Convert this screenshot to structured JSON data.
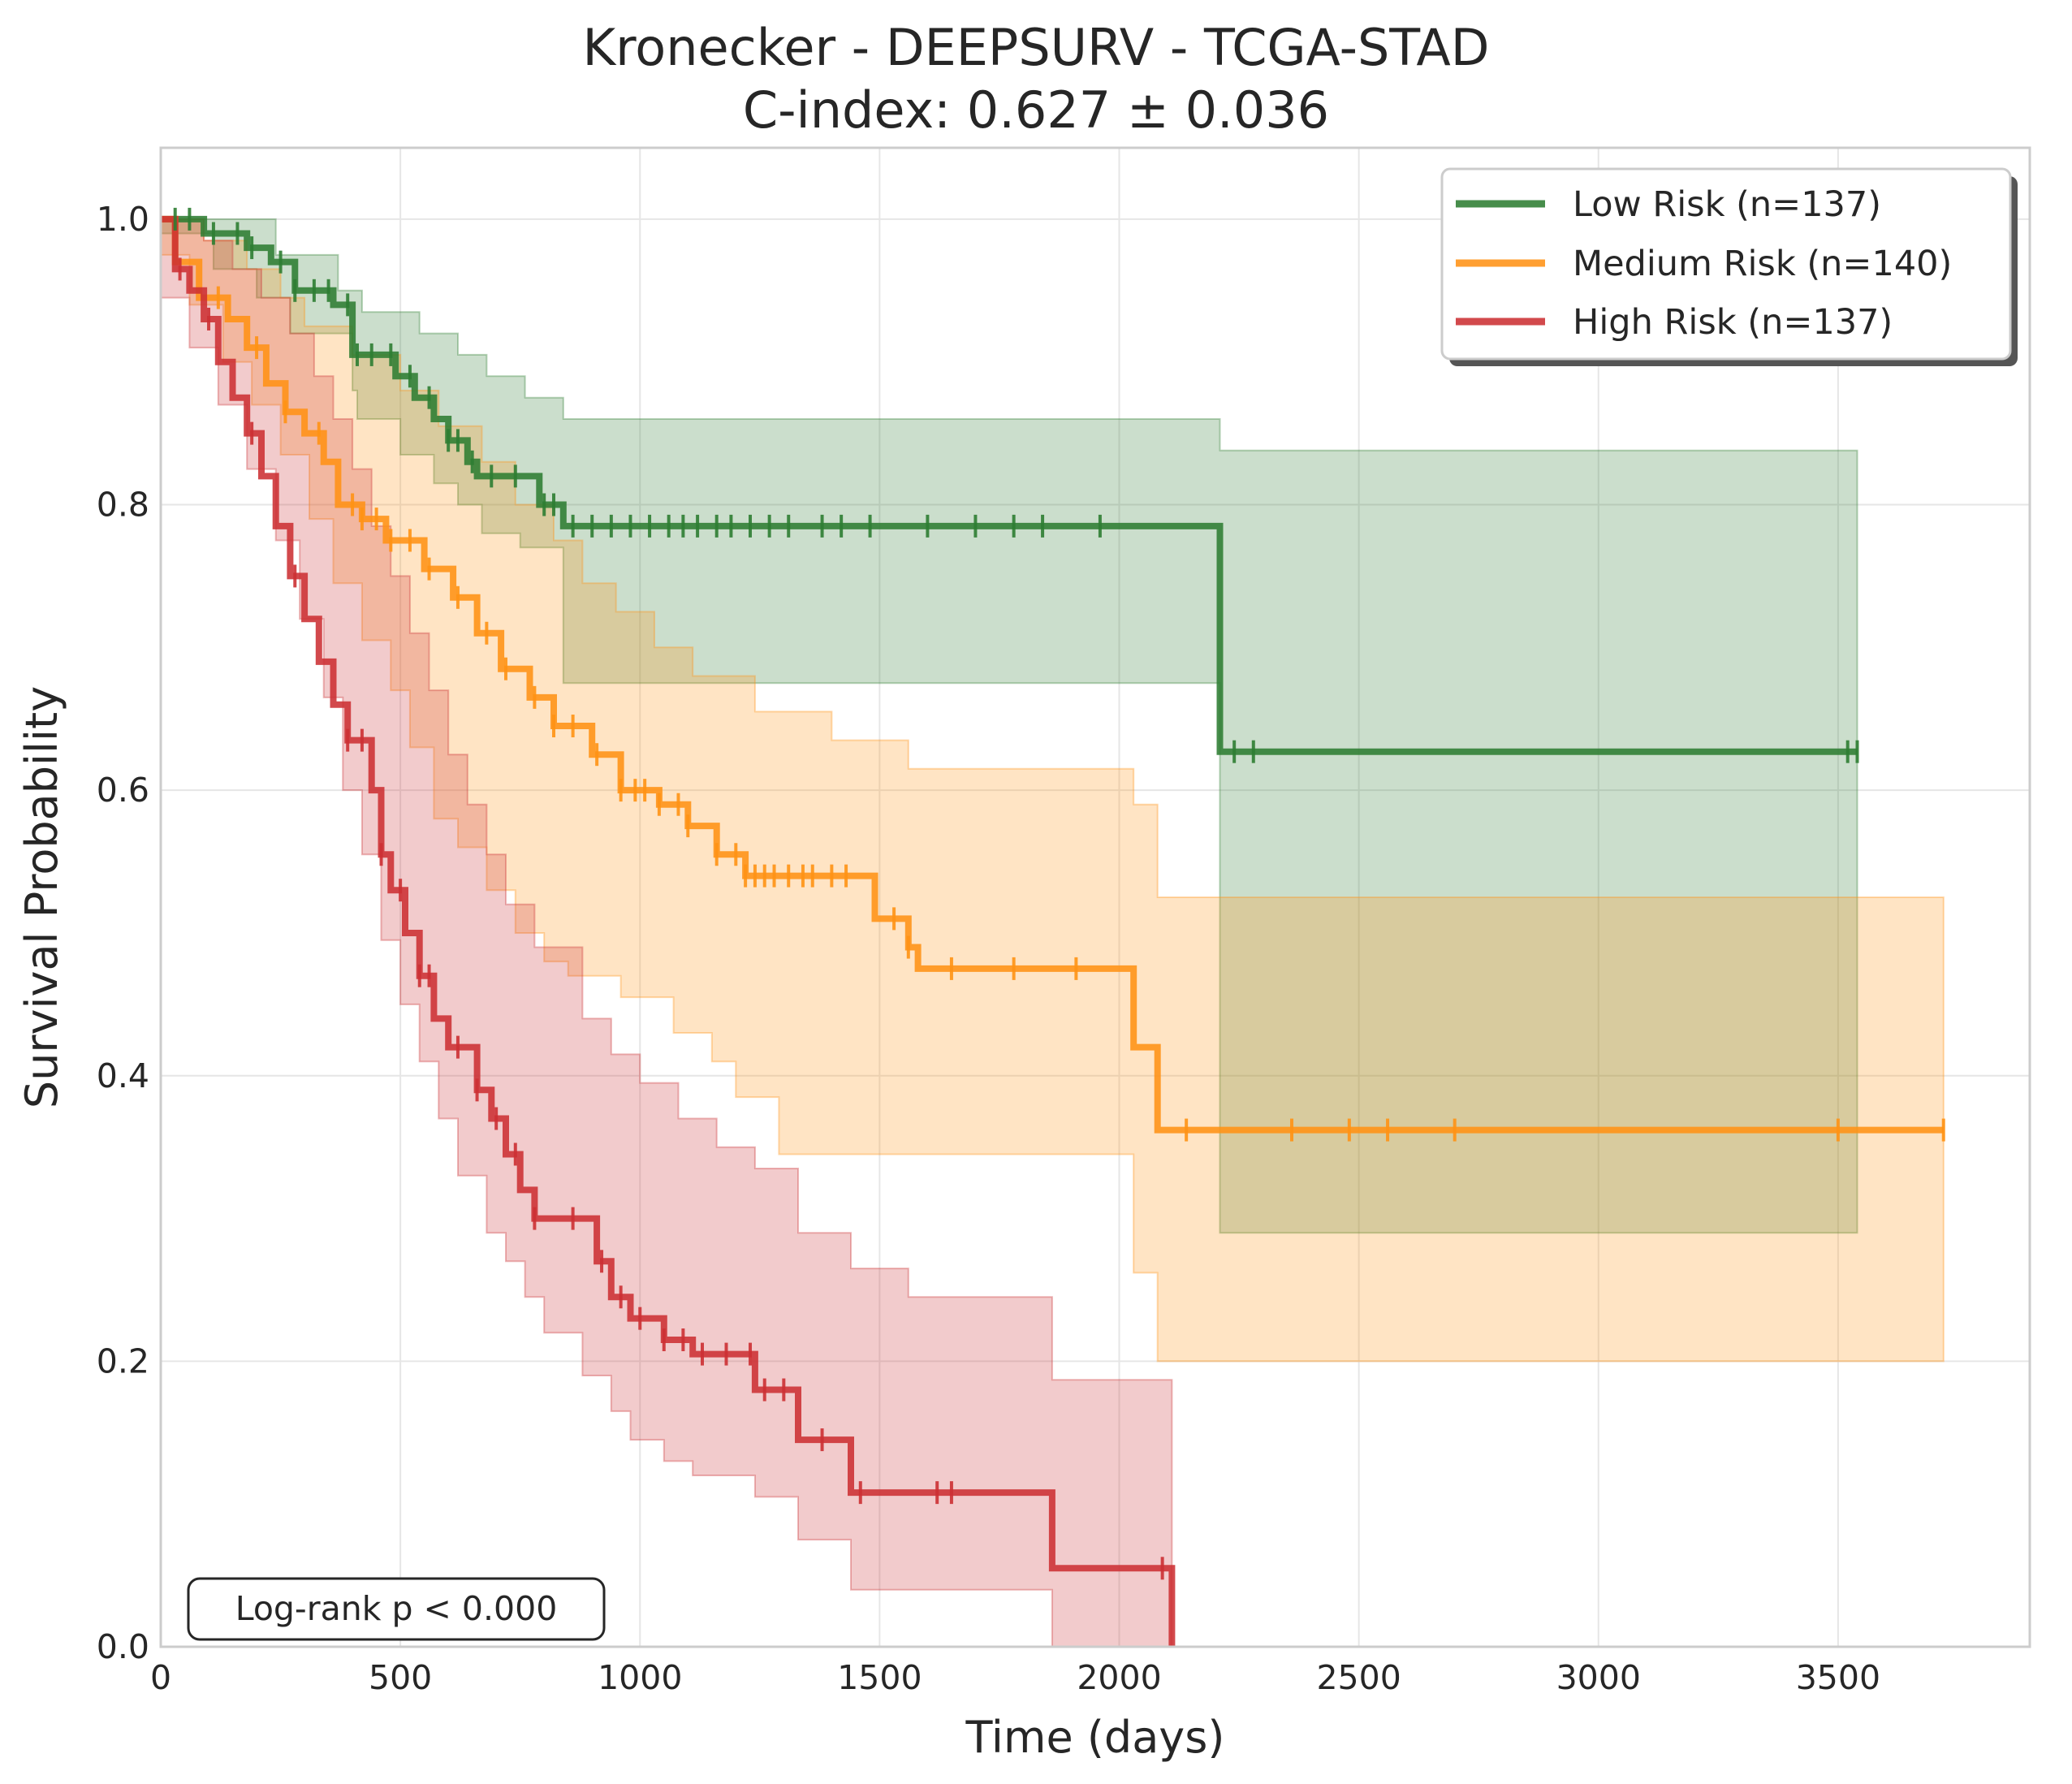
{
  "chart_data": {
    "type": "line",
    "subtype": "kaplan-meier",
    "title": "Kronecker - DEEPSURV - TCGA-STAD",
    "subtitle": "C-index: 0.627 ± 0.036",
    "xlabel": "Time (days)",
    "ylabel": "Survival Probability",
    "xlim": [
      0,
      3900
    ],
    "ylim": [
      0,
      1.05
    ],
    "x_ticks": [
      0,
      500,
      1000,
      1500,
      2000,
      2500,
      3000,
      3500
    ],
    "y_ticks": [
      0.0,
      0.2,
      0.4,
      0.6,
      0.8,
      1.0
    ],
    "x_tick_labels": [
      "0",
      "500",
      "1000",
      "1500",
      "2000",
      "2500",
      "3000",
      "3500"
    ],
    "y_tick_labels": [
      "0.0",
      "0.2",
      "0.4",
      "0.6",
      "0.8",
      "1.0"
    ],
    "grid": true,
    "legend_position": "top-right",
    "annotation": "Log-rank p < 0.000",
    "series": [
      {
        "name": "Low Risk (n=137)",
        "color": "#2e7d32",
        "steps": [
          [
            0,
            1.0
          ],
          [
            90,
            0.99
          ],
          [
            180,
            0.98
          ],
          [
            230,
            0.97
          ],
          [
            280,
            0.95
          ],
          [
            360,
            0.94
          ],
          [
            400,
            0.905
          ],
          [
            490,
            0.89
          ],
          [
            530,
            0.875
          ],
          [
            570,
            0.86
          ],
          [
            600,
            0.845
          ],
          [
            640,
            0.83
          ],
          [
            660,
            0.82
          ],
          [
            790,
            0.8
          ],
          [
            840,
            0.785
          ],
          [
            2210,
            0.785
          ],
          [
            2210,
            0.627
          ],
          [
            3540,
            0.627
          ]
        ],
        "ci_upper": [
          [
            0,
            1.0
          ],
          [
            150,
            1.0
          ],
          [
            240,
            0.975
          ],
          [
            370,
            0.95
          ],
          [
            420,
            0.935
          ],
          [
            540,
            0.92
          ],
          [
            620,
            0.905
          ],
          [
            680,
            0.89
          ],
          [
            760,
            0.875
          ],
          [
            840,
            0.86
          ],
          [
            2210,
            0.86
          ],
          [
            2210,
            0.838
          ],
          [
            3540,
            0.838
          ]
        ],
        "ci_lower": [
          [
            0,
            0.99
          ],
          [
            110,
            0.965
          ],
          [
            200,
            0.945
          ],
          [
            270,
            0.92
          ],
          [
            400,
            0.88
          ],
          [
            410,
            0.86
          ],
          [
            500,
            0.835
          ],
          [
            570,
            0.815
          ],
          [
            620,
            0.8
          ],
          [
            670,
            0.78
          ],
          [
            750,
            0.77
          ],
          [
            840,
            0.685
          ],
          [
            840,
            0.675
          ],
          [
            2210,
            0.675
          ],
          [
            2210,
            0.29
          ],
          [
            3540,
            0.29
          ]
        ],
        "censor_x": [
          30,
          60,
          110,
          160,
          190,
          250,
          280,
          320,
          350,
          390,
          410,
          440,
          480,
          520,
          560,
          600,
          620,
          650,
          690,
          740,
          800,
          820,
          860,
          900,
          940,
          980,
          1020,
          1060,
          1090,
          1120,
          1160,
          1190,
          1230,
          1270,
          1310,
          1380,
          1420,
          1480,
          1600,
          1700,
          1780,
          1840,
          1960,
          2240,
          2280,
          3520,
          3540
        ],
        "censor_at_y": true
      },
      {
        "name": "Medium Risk (n=140)",
        "color": "#ff9214",
        "steps": [
          [
            0,
            1.0
          ],
          [
            30,
            0.97
          ],
          [
            80,
            0.945
          ],
          [
            140,
            0.93
          ],
          [
            180,
            0.91
          ],
          [
            220,
            0.885
          ],
          [
            260,
            0.865
          ],
          [
            300,
            0.85
          ],
          [
            340,
            0.83
          ],
          [
            370,
            0.8
          ],
          [
            420,
            0.79
          ],
          [
            470,
            0.775
          ],
          [
            550,
            0.755
          ],
          [
            610,
            0.735
          ],
          [
            660,
            0.71
          ],
          [
            710,
            0.685
          ],
          [
            770,
            0.665
          ],
          [
            820,
            0.645
          ],
          [
            900,
            0.625
          ],
          [
            960,
            0.6
          ],
          [
            1040,
            0.59
          ],
          [
            1100,
            0.575
          ],
          [
            1160,
            0.555
          ],
          [
            1220,
            0.54
          ],
          [
            1460,
            0.54
          ],
          [
            1490,
            0.51
          ],
          [
            1560,
            0.49
          ],
          [
            1580,
            0.475
          ],
          [
            2030,
            0.475
          ],
          [
            2030,
            0.42
          ],
          [
            2080,
            0.42
          ],
          [
            2080,
            0.362
          ],
          [
            3720,
            0.362
          ]
        ],
        "ci_upper": [
          [
            0,
            1.0
          ],
          [
            90,
            0.985
          ],
          [
            180,
            0.965
          ],
          [
            250,
            0.945
          ],
          [
            300,
            0.925
          ],
          [
            400,
            0.905
          ],
          [
            500,
            0.88
          ],
          [
            580,
            0.855
          ],
          [
            670,
            0.83
          ],
          [
            740,
            0.8
          ],
          [
            820,
            0.775
          ],
          [
            880,
            0.745
          ],
          [
            950,
            0.725
          ],
          [
            1030,
            0.7
          ],
          [
            1110,
            0.68
          ],
          [
            1240,
            0.655
          ],
          [
            1400,
            0.635
          ],
          [
            1560,
            0.615
          ],
          [
            2030,
            0.59
          ],
          [
            2080,
            0.525
          ],
          [
            3720,
            0.525
          ]
        ],
        "ci_lower": [
          [
            0,
            0.975
          ],
          [
            60,
            0.94
          ],
          [
            130,
            0.9
          ],
          [
            190,
            0.87
          ],
          [
            250,
            0.835
          ],
          [
            310,
            0.79
          ],
          [
            360,
            0.745
          ],
          [
            420,
            0.705
          ],
          [
            480,
            0.67
          ],
          [
            520,
            0.63
          ],
          [
            570,
            0.58
          ],
          [
            620,
            0.56
          ],
          [
            680,
            0.53
          ],
          [
            740,
            0.5
          ],
          [
            800,
            0.48
          ],
          [
            850,
            0.47
          ],
          [
            960,
            0.455
          ],
          [
            1070,
            0.43
          ],
          [
            1150,
            0.41
          ],
          [
            1200,
            0.385
          ],
          [
            1290,
            0.345
          ],
          [
            1420,
            0.345
          ],
          [
            1580,
            0.345
          ],
          [
            2030,
            0.345
          ],
          [
            2030,
            0.262
          ],
          [
            2080,
            0.262
          ],
          [
            2080,
            0.2
          ],
          [
            3720,
            0.2
          ]
        ],
        "censor_x": [
          120,
          200,
          260,
          330,
          400,
          420,
          450,
          480,
          520,
          560,
          620,
          680,
          720,
          780,
          820,
          860,
          910,
          960,
          990,
          1010,
          1040,
          1080,
          1100,
          1160,
          1200,
          1220,
          1240,
          1260,
          1280,
          1310,
          1340,
          1360,
          1400,
          1430,
          1530,
          1560,
          1650,
          1780,
          1910,
          2140,
          2360,
          2480,
          2560,
          2700,
          3500,
          3720
        ],
        "censor_at_y": true
      },
      {
        "name": "High Risk (n=137)",
        "color": "#cc3033",
        "steps": [
          [
            0,
            1.0
          ],
          [
            30,
            0.965
          ],
          [
            60,
            0.95
          ],
          [
            90,
            0.93
          ],
          [
            120,
            0.9
          ],
          [
            150,
            0.875
          ],
          [
            180,
            0.85
          ],
          [
            210,
            0.82
          ],
          [
            240,
            0.785
          ],
          [
            270,
            0.75
          ],
          [
            300,
            0.72
          ],
          [
            330,
            0.69
          ],
          [
            360,
            0.66
          ],
          [
            390,
            0.635
          ],
          [
            420,
            0.635
          ],
          [
            440,
            0.6
          ],
          [
            460,
            0.555
          ],
          [
            480,
            0.53
          ],
          [
            510,
            0.5
          ],
          [
            540,
            0.47
          ],
          [
            570,
            0.44
          ],
          [
            600,
            0.42
          ],
          [
            660,
            0.39
          ],
          [
            690,
            0.37
          ],
          [
            720,
            0.345
          ],
          [
            750,
            0.32
          ],
          [
            780,
            0.3
          ],
          [
            880,
            0.3
          ],
          [
            910,
            0.27
          ],
          [
            940,
            0.245
          ],
          [
            980,
            0.23
          ],
          [
            1050,
            0.215
          ],
          [
            1110,
            0.205
          ],
          [
            1240,
            0.18
          ],
          [
            1330,
            0.18
          ],
          [
            1330,
            0.145
          ],
          [
            1440,
            0.145
          ],
          [
            1440,
            0.108
          ],
          [
            1860,
            0.108
          ],
          [
            1860,
            0.055
          ],
          [
            2110,
            0.055
          ],
          [
            2110,
            0.0
          ]
        ],
        "ci_upper": [
          [
            0,
            1.0
          ],
          [
            90,
            0.985
          ],
          [
            150,
            0.965
          ],
          [
            210,
            0.945
          ],
          [
            270,
            0.92
          ],
          [
            320,
            0.89
          ],
          [
            360,
            0.86
          ],
          [
            400,
            0.825
          ],
          [
            440,
            0.785
          ],
          [
            480,
            0.75
          ],
          [
            520,
            0.71
          ],
          [
            560,
            0.67
          ],
          [
            600,
            0.625
          ],
          [
            640,
            0.59
          ],
          [
            680,
            0.555
          ],
          [
            720,
            0.52
          ],
          [
            780,
            0.49
          ],
          [
            880,
            0.44
          ],
          [
            940,
            0.415
          ],
          [
            1000,
            0.395
          ],
          [
            1080,
            0.37
          ],
          [
            1160,
            0.35
          ],
          [
            1240,
            0.335
          ],
          [
            1330,
            0.29
          ],
          [
            1440,
            0.265
          ],
          [
            1560,
            0.245
          ],
          [
            1860,
            0.22
          ],
          [
            1860,
            0.187
          ],
          [
            2110,
            0.187
          ]
        ],
        "ci_lower": [
          [
            0,
            0.945
          ],
          [
            60,
            0.91
          ],
          [
            120,
            0.87
          ],
          [
            180,
            0.825
          ],
          [
            240,
            0.775
          ],
          [
            290,
            0.72
          ],
          [
            340,
            0.665
          ],
          [
            380,
            0.6
          ],
          [
            420,
            0.555
          ],
          [
            460,
            0.495
          ],
          [
            500,
            0.45
          ],
          [
            540,
            0.41
          ],
          [
            580,
            0.37
          ],
          [
            620,
            0.33
          ],
          [
            680,
            0.29
          ],
          [
            720,
            0.27
          ],
          [
            760,
            0.245
          ],
          [
            800,
            0.22
          ],
          [
            880,
            0.19
          ],
          [
            940,
            0.165
          ],
          [
            980,
            0.145
          ],
          [
            1050,
            0.13
          ],
          [
            1110,
            0.12
          ],
          [
            1240,
            0.105
          ],
          [
            1330,
            0.075
          ],
          [
            1440,
            0.04
          ],
          [
            1860,
            0.04
          ],
          [
            1860,
            0.0
          ],
          [
            2110,
            0.0
          ]
        ],
        "censor_x": [
          40,
          100,
          190,
          280,
          390,
          420,
          460,
          500,
          540,
          560,
          620,
          660,
          700,
          740,
          780,
          860,
          920,
          960,
          1000,
          1050,
          1090,
          1130,
          1180,
          1230,
          1260,
          1300,
          1380,
          1460,
          1620,
          1650,
          2090
        ],
        "censor_at_y": true
      }
    ]
  }
}
